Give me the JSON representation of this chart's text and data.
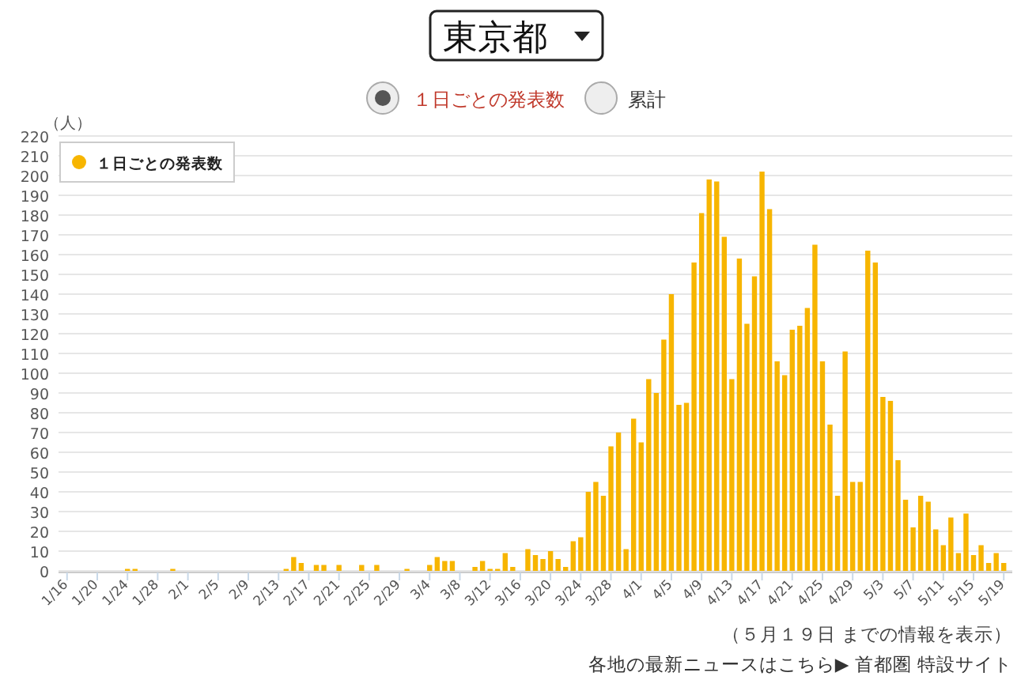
{
  "chart_data": {
    "type": "bar",
    "title": "東京都",
    "ylabel": "（人）",
    "annotations": [
      "１日ごとの発表数",
      "累計",
      "（５月１９日 までの情報を表示）",
      "各地の最新ニュースはこちら▶ 首都圏 特設サイト"
    ],
    "categories": [
      "1/16",
      null,
      null,
      null,
      "1/20",
      null,
      null,
      null,
      "1/24",
      null,
      null,
      null,
      "1/28",
      null,
      null,
      null,
      "2/1",
      null,
      null,
      null,
      "2/5",
      null,
      null,
      null,
      "2/9",
      null,
      null,
      null,
      "2/13",
      null,
      null,
      null,
      "2/17",
      null,
      null,
      null,
      "2/21",
      null,
      null,
      null,
      "2/25",
      null,
      null,
      null,
      "2/29",
      null,
      null,
      null,
      "3/4",
      null,
      null,
      null,
      "3/8",
      null,
      null,
      null,
      "3/12",
      null,
      null,
      null,
      "3/16",
      null,
      null,
      null,
      "3/20",
      null,
      null,
      null,
      "3/24",
      null,
      null,
      null,
      "3/28",
      null,
      null,
      null,
      "4/1",
      null,
      null,
      null,
      "4/5",
      null,
      null,
      null,
      "4/9",
      null,
      null,
      null,
      "4/13",
      null,
      null,
      null,
      "4/17",
      null,
      null,
      null,
      "4/21",
      null,
      null,
      null,
      "4/25",
      null,
      null,
      null,
      "4/29",
      null,
      null,
      null,
      "5/3",
      null,
      null,
      null,
      "5/7",
      null,
      null,
      null,
      "5/11",
      null,
      null,
      null,
      "5/15",
      null,
      null,
      null,
      "5/19"
    ],
    "series": [
      {
        "name": "１日ごとの発表数",
        "color": "#f7b500",
        "values": [
          0,
          0,
          0,
          0,
          0,
          0,
          0,
          0,
          1,
          1,
          0,
          0,
          0,
          0,
          1,
          0,
          0,
          0,
          0,
          0,
          0,
          0,
          0,
          0,
          0,
          0,
          0,
          0,
          0,
          1,
          7,
          4,
          0,
          3,
          3,
          0,
          3,
          0,
          0,
          3,
          0,
          3,
          0,
          0,
          0,
          1,
          0,
          0,
          3,
          7,
          5,
          5,
          0,
          0,
          2,
          5,
          1,
          1,
          9,
          2,
          0,
          11,
          8,
          6,
          10,
          6,
          2,
          15,
          17,
          40,
          45,
          38,
          63,
          70,
          11,
          77,
          65,
          97,
          90,
          117,
          140,
          84,
          85,
          156,
          181,
          198,
          197,
          169,
          97,
          158,
          125,
          149,
          202,
          183,
          106,
          99,
          122,
          124,
          133,
          165,
          106,
          74,
          38,
          111,
          45,
          45,
          162,
          156,
          88,
          86,
          56,
          36,
          22,
          38,
          35,
          21,
          13,
          27,
          9,
          29,
          8,
          13,
          4,
          9,
          4
        ]
      }
    ],
    "ylim": [
      0,
      220
    ],
    "yticks": [
      0,
      10,
      20,
      30,
      40,
      50,
      60,
      70,
      80,
      90,
      100,
      110,
      120,
      130,
      140,
      150,
      160,
      170,
      180,
      190,
      200,
      210,
      220
    ],
    "grid": "y",
    "legend": "top left"
  }
}
